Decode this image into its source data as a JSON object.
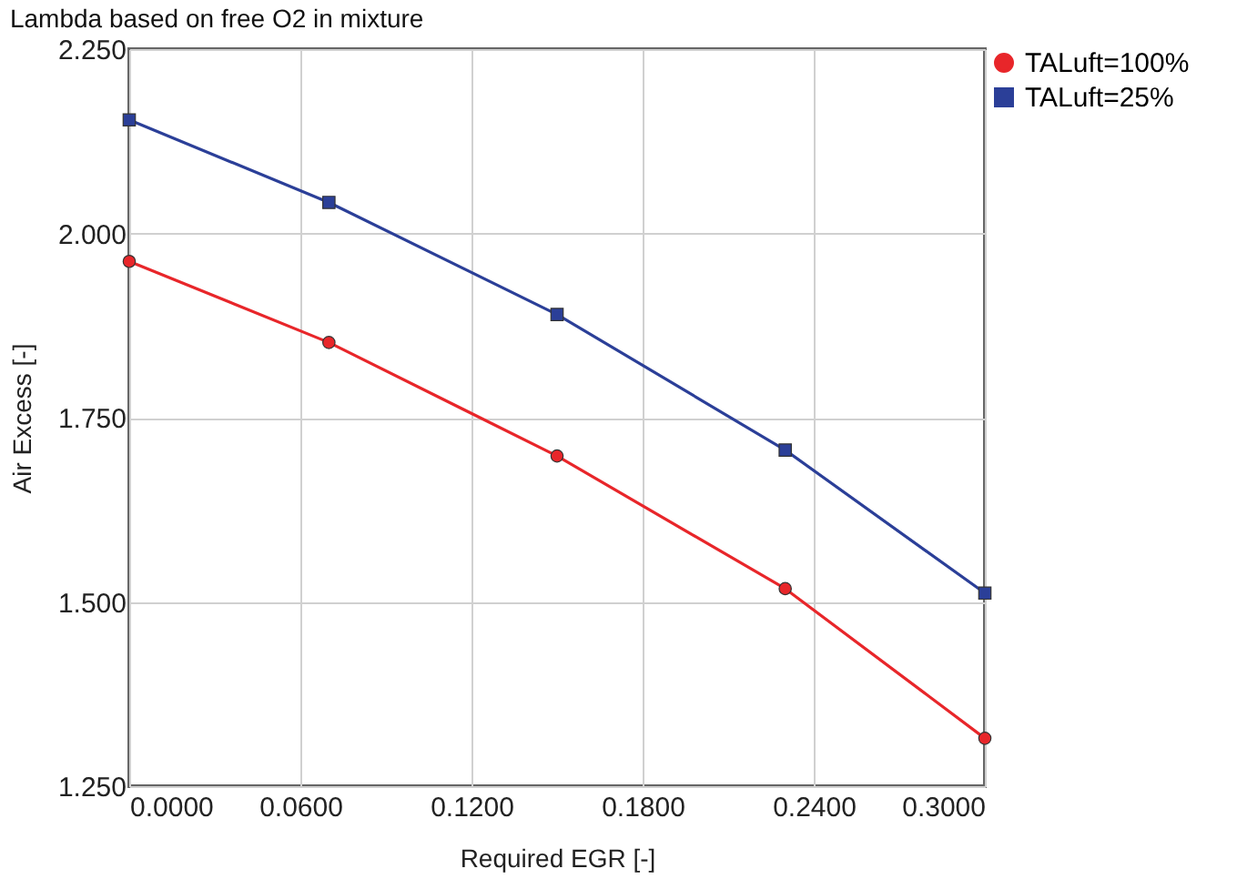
{
  "chart_data": {
    "type": "line",
    "title": "Lambda based on free O2 in mixture",
    "xlabel": "Required EGR [-]",
    "ylabel": "Air Excess [-]",
    "x": [
      0.0,
      0.07,
      0.15,
      0.23,
      0.3
    ],
    "series": [
      {
        "name": "TALuft=100%",
        "color": "#e8262a",
        "marker": "circle",
        "values": [
          1.962,
          1.852,
          1.698,
          1.518,
          1.315
        ]
      },
      {
        "name": "TALuft=25%",
        "color": "#2b3f98",
        "marker": "square",
        "values": [
          2.154,
          2.042,
          1.89,
          1.706,
          1.512
        ]
      }
    ],
    "xlim": [
      0.0,
      0.3
    ],
    "xticks": [
      {
        "value": 0.0,
        "label": "0.0000"
      },
      {
        "value": 0.06,
        "label": "0.0600"
      },
      {
        "value": 0.12,
        "label": "0.1200"
      },
      {
        "value": 0.18,
        "label": "0.1800"
      },
      {
        "value": 0.24,
        "label": "0.2400"
      },
      {
        "value": 0.3,
        "label": "0.3000"
      }
    ],
    "ylim": [
      1.25,
      2.25
    ],
    "yticks": [
      {
        "value": 1.25,
        "label": "1.250"
      },
      {
        "value": 1.5,
        "label": "1.500"
      },
      {
        "value": 1.75,
        "label": "1.750"
      },
      {
        "value": 2.0,
        "label": "2.000"
      },
      {
        "value": 2.25,
        "label": "2.250"
      }
    ],
    "grid": true,
    "legend": "right",
    "line_style": "solid"
  }
}
